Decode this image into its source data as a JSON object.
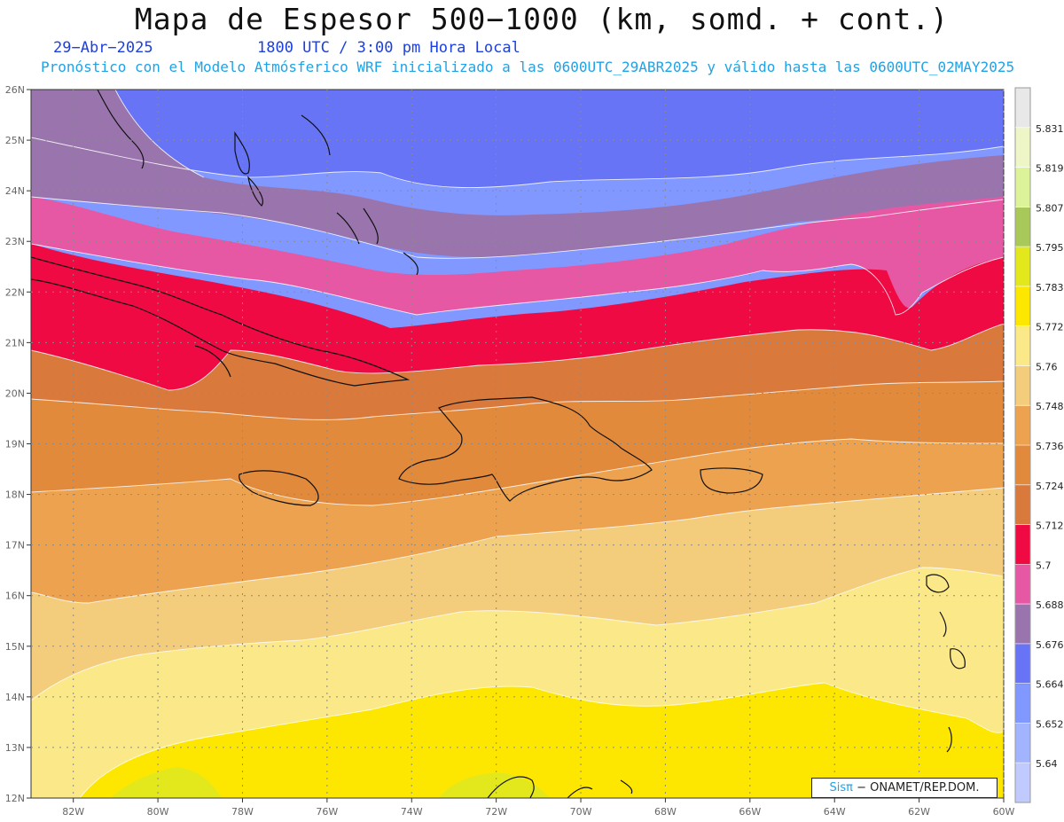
{
  "header": {
    "title": "Mapa de Espesor 500−1000 (km, somd. + cont.)",
    "date": "29−Abr−2025",
    "time": "1800 UTC / 3:00 pm Hora Local",
    "subtitle": "Pronóstico con el Modelo Atmósferico WRF inicializado a las 0600UTC_29ABR2025 y válido hasta las  0600UTC_02MAY2025"
  },
  "credit": {
    "brand": "Sisπ",
    "text": " − ONAMET/REP.DOM."
  },
  "chart_data": {
    "type": "heatmap",
    "xlim": [
      -83,
      -60
    ],
    "ylim": [
      12,
      26
    ],
    "x_ticks": [
      "82W",
      "80W",
      "78W",
      "76W",
      "74W",
      "72W",
      "70W",
      "68W",
      "66W",
      "64W",
      "62W",
      "60W"
    ],
    "y_ticks": [
      "12N",
      "13N",
      "14N",
      "15N",
      "16N",
      "17N",
      "18N",
      "19N",
      "20N",
      "21N",
      "22N",
      "23N",
      "24N",
      "25N",
      "26N"
    ],
    "grid": true,
    "colorbar": {
      "position": "right",
      "levels": [
        "5.64",
        "5.652",
        "5.664",
        "5.676",
        "5.688",
        "5.7",
        "5.712",
        "5.724",
        "5.736",
        "5.748",
        "5.76",
        "5.772",
        "5.783",
        "5.795",
        "5.807",
        "5.819",
        "5.831"
      ],
      "colors": [
        "#c0caff",
        "#a3b4ff",
        "#8098ff",
        "#6674f5",
        "#9a74ac",
        "#e658a4",
        "#ef0a44",
        "#d97a3c",
        "#e28a3c",
        "#eca24e",
        "#f3cc7c",
        "#fbe888",
        "#fde700",
        "#e3e81c",
        "#a8c85a",
        "#ddf39a",
        "#eef6c8",
        "#e8e8e8"
      ]
    },
    "field": {
      "description_colors_by_band": [
        {
          "band": "5.652-5.664",
          "color": "#8098ff"
        },
        {
          "band": "5.664-5.676",
          "color": "#6674f5"
        },
        {
          "band": "5.676-5.688",
          "color": "#9a74ac"
        },
        {
          "band": "5.688-5.7",
          "color": "#e658a4"
        },
        {
          "band": "5.7-5.712",
          "color": "#ef0a44"
        },
        {
          "band": "5.712-5.724",
          "color": "#d97a3c"
        },
        {
          "band": "5.724-5.736",
          "color": "#e28a3c"
        },
        {
          "band": "5.736-5.748",
          "color": "#eca24e"
        },
        {
          "band": "5.748-5.76",
          "color": "#f3cc7c"
        },
        {
          "band": "5.76-5.772",
          "color": "#fbe888"
        },
        {
          "band": "5.772-5.783",
          "color": "#fde700"
        },
        {
          "band": "5.783-5.795",
          "color": "#e3e81c"
        }
      ]
    }
  }
}
